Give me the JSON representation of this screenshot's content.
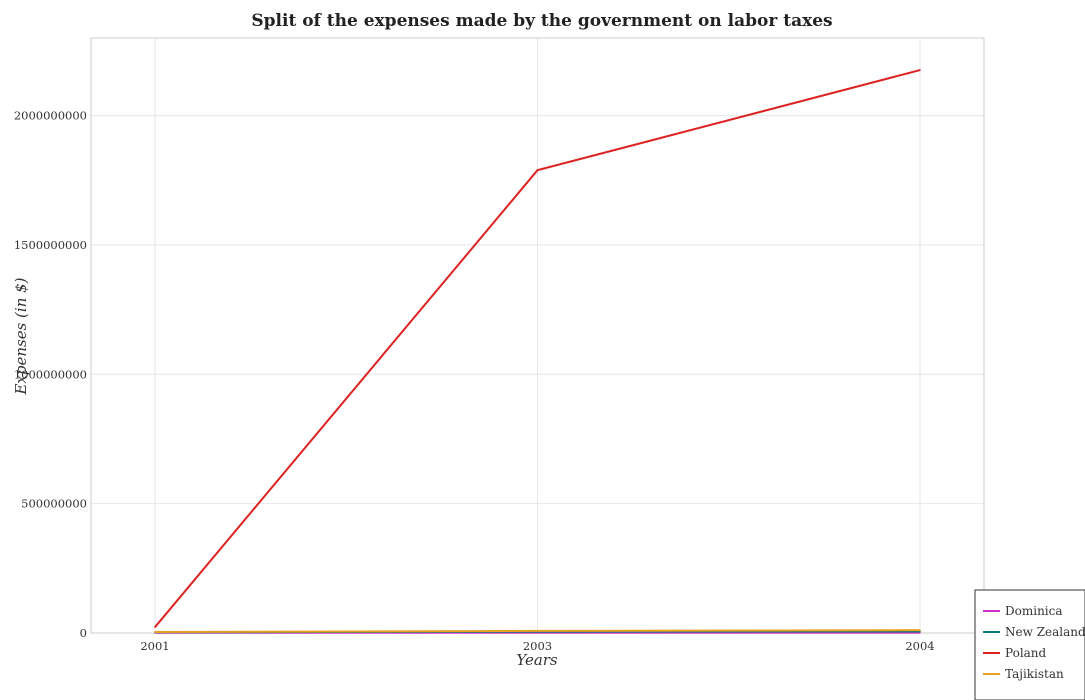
{
  "chart_data": {
    "type": "line",
    "title": "Split of the expenses made by the government on labor taxes",
    "xlabel": "Years",
    "ylabel": "Expenses (in $)",
    "x": [
      "2001",
      "2003",
      "2004"
    ],
    "ylim": [
      0,
      2300000000
    ],
    "yticks": [
      0,
      500000000,
      1000000000,
      1500000000,
      2000000000
    ],
    "ytick_labels": [
      "0",
      "500000000",
      "1000000000",
      "1500000000",
      "2000000000"
    ],
    "grid": true,
    "legend_position": "bottom-right",
    "series": [
      {
        "name": "Dominica",
        "color": "#cc33cc",
        "values": [
          1000000,
          1000000,
          1000000
        ]
      },
      {
        "name": "New Zealand",
        "color": "#117777",
        "values": [
          3000000,
          5000000,
          6000000
        ]
      },
      {
        "name": "Poland",
        "color": "#dd2222",
        "values": [
          23000000,
          1789000000,
          2176000000
        ]
      },
      {
        "name": "Tajikistan",
        "color": "#e8a020",
        "values": [
          4000000,
          8000000,
          11000000
        ]
      }
    ]
  }
}
